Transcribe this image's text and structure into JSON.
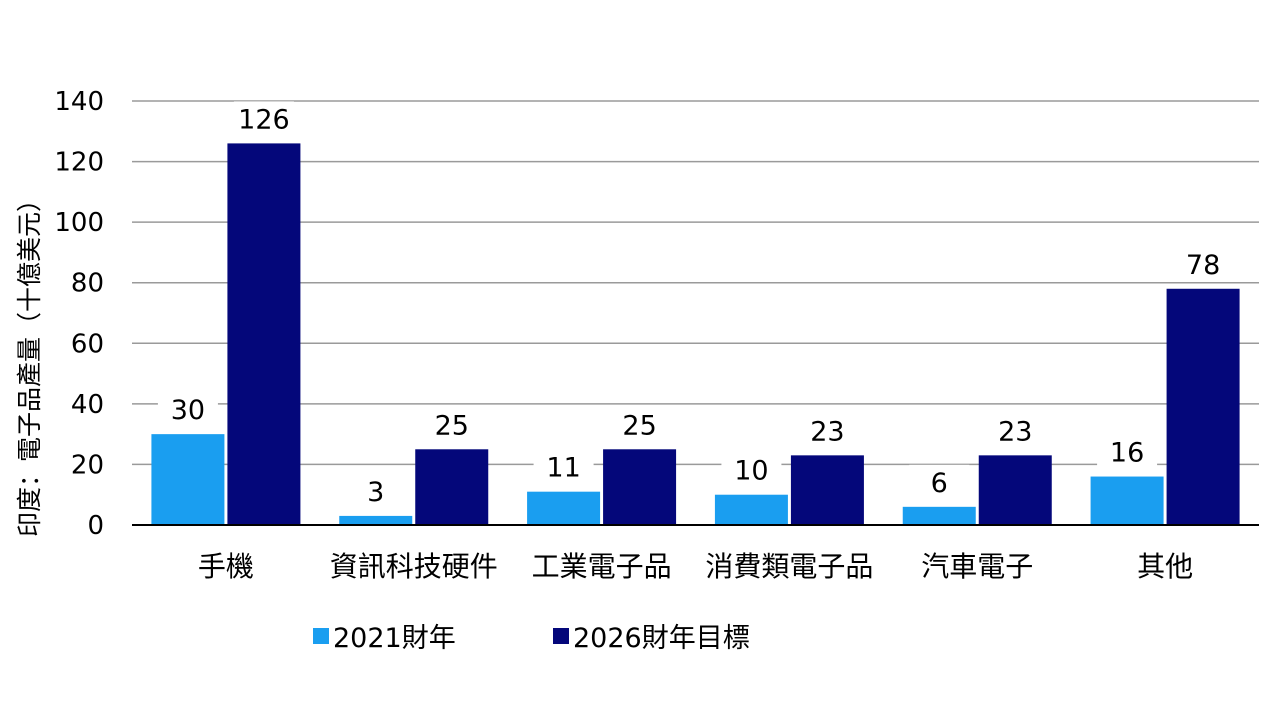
{
  "chart_data": {
    "type": "bar",
    "title": "",
    "xlabel": "",
    "ylabel": "印度：電子品產量（十億美元）",
    "ylim": [
      0,
      140
    ],
    "yticks": [
      0,
      20,
      40,
      60,
      80,
      100,
      120,
      140
    ],
    "grid": true,
    "legend_position": "bottom",
    "categories": [
      "手機",
      "資訊科技硬件",
      "工業電子品",
      "消費類電子品",
      "汽車電子",
      "其他"
    ],
    "series": [
      {
        "name": "2021財年",
        "color": "#1a9ef0",
        "values": [
          30,
          3,
          11,
          10,
          6,
          16
        ]
      },
      {
        "name": "2026財年目標",
        "color": "#04077a",
        "values": [
          126,
          25,
          25,
          23,
          23,
          78
        ]
      }
    ]
  }
}
